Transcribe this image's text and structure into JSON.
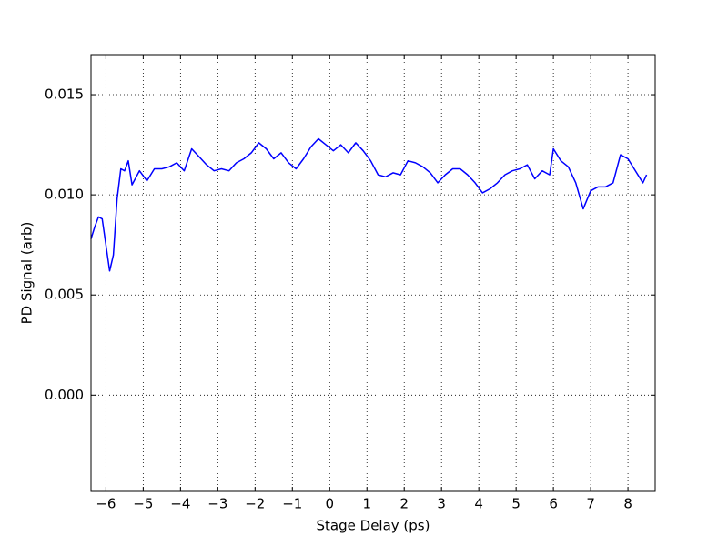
{
  "chart_data": {
    "type": "line",
    "xlabel": "Stage Delay (ps)",
    "ylabel": "PD Signal (arb)",
    "x": [
      -6.4,
      -6.3,
      -6.2,
      -6.1,
      -6.0,
      -5.9,
      -5.8,
      -5.7,
      -5.6,
      -5.5,
      -5.4,
      -5.3,
      -5.1,
      -4.9,
      -4.7,
      -4.5,
      -4.3,
      -4.1,
      -3.9,
      -3.7,
      -3.5,
      -3.3,
      -3.1,
      -2.9,
      -2.7,
      -2.5,
      -2.3,
      -2.1,
      -1.9,
      -1.7,
      -1.5,
      -1.3,
      -1.1,
      -0.9,
      -0.7,
      -0.5,
      -0.3,
      -0.1,
      0.1,
      0.3,
      0.5,
      0.7,
      0.9,
      1.1,
      1.3,
      1.5,
      1.7,
      1.9,
      2.1,
      2.3,
      2.5,
      2.7,
      2.9,
      3.1,
      3.3,
      3.5,
      3.7,
      3.9,
      4.1,
      4.3,
      4.5,
      4.7,
      4.9,
      5.1,
      5.3,
      5.5,
      5.7,
      5.9,
      6.0,
      6.2,
      6.4,
      6.6,
      6.8,
      7.0,
      7.2,
      7.4,
      7.6,
      7.8,
      8.0,
      8.2,
      8.4,
      8.5
    ],
    "values": [
      0.0078,
      0.0084,
      0.0089,
      0.0088,
      0.0075,
      0.0062,
      0.007,
      0.0098,
      0.0113,
      0.0112,
      0.0117,
      0.0105,
      0.0112,
      0.0107,
      0.0113,
      0.0113,
      0.0114,
      0.0116,
      0.0112,
      0.0123,
      0.0119,
      0.0115,
      0.0112,
      0.0113,
      0.0112,
      0.0116,
      0.0118,
      0.0121,
      0.0126,
      0.0123,
      0.0118,
      0.0121,
      0.0116,
      0.0113,
      0.0118,
      0.0124,
      0.0128,
      0.0125,
      0.0122,
      0.0125,
      0.0121,
      0.0126,
      0.0122,
      0.0117,
      0.011,
      0.0109,
      0.0111,
      0.011,
      0.0117,
      0.0116,
      0.0114,
      0.0111,
      0.0106,
      0.011,
      0.0113,
      0.0113,
      0.011,
      0.0106,
      0.0101,
      0.0103,
      0.0106,
      0.011,
      0.0112,
      0.0113,
      0.0115,
      0.0108,
      0.0112,
      0.011,
      0.0123,
      0.0117,
      0.0114,
      0.0106,
      0.0093,
      0.0102,
      0.0104,
      0.0104,
      0.0106,
      0.012,
      0.0118,
      0.0112,
      0.0106,
      0.011
    ],
    "color": "#0000ff",
    "xlim": [
      -6.4,
      8.73
    ],
    "ylim": [
      -0.0048,
      0.017
    ],
    "xticks": [
      {
        "value": -6,
        "label": "−6"
      },
      {
        "value": -5,
        "label": "−5"
      },
      {
        "value": -4,
        "label": "−4"
      },
      {
        "value": -3,
        "label": "−3"
      },
      {
        "value": -2,
        "label": "−2"
      },
      {
        "value": -1,
        "label": "−1"
      },
      0,
      1,
      2,
      3,
      4,
      5,
      6,
      7,
      8
    ],
    "yticks": [
      {
        "value": 0,
        "label": "0.000"
      },
      0.005,
      {
        "value": 0.01,
        "label": "0.010"
      },
      0.015
    ],
    "grid": true
  }
}
